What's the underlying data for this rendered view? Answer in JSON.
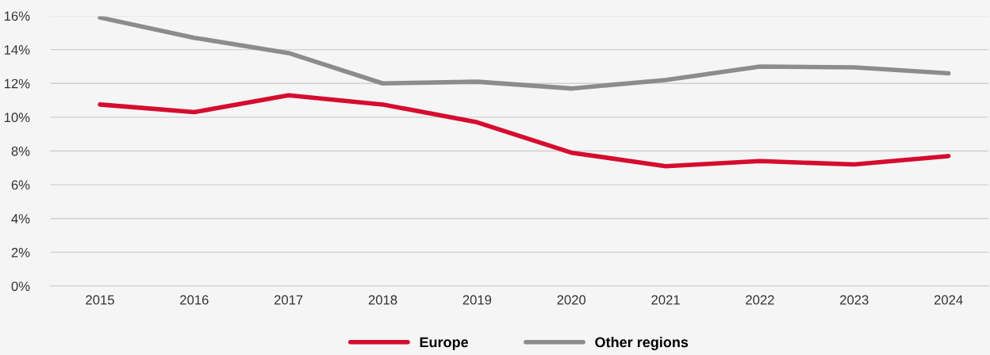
{
  "chart_data": {
    "type": "line",
    "categories": [
      "2015",
      "2016",
      "2017",
      "2018",
      "2019",
      "2020",
      "2021",
      "2022",
      "2023",
      "2024"
    ],
    "series": [
      {
        "name": "Europe",
        "color": "#d50c2f",
        "values": [
          10.75,
          10.3,
          11.3,
          10.75,
          9.7,
          7.9,
          7.1,
          7.4,
          7.2,
          7.7
        ]
      },
      {
        "name": "Other regions",
        "color": "#8c8c8c",
        "values": [
          15.9,
          14.7,
          13.8,
          12.0,
          12.1,
          11.7,
          12.2,
          13.0,
          12.95,
          12.6
        ]
      }
    ],
    "ylim": [
      0,
      16
    ],
    "yticks": [
      {
        "value": 0,
        "label": "0%"
      },
      {
        "value": 2,
        "label": "2%"
      },
      {
        "value": 4,
        "label": "4%"
      },
      {
        "value": 6,
        "label": "6%"
      },
      {
        "value": 8,
        "label": "8%"
      },
      {
        "value": 10,
        "label": "10%"
      },
      {
        "value": 12,
        "label": "12%"
      },
      {
        "value": 14,
        "label": "14%"
      },
      {
        "value": 16,
        "label": "16%"
      }
    ],
    "grid": "y",
    "legend": "bottom",
    "marker": "none",
    "line_style": "solid"
  }
}
